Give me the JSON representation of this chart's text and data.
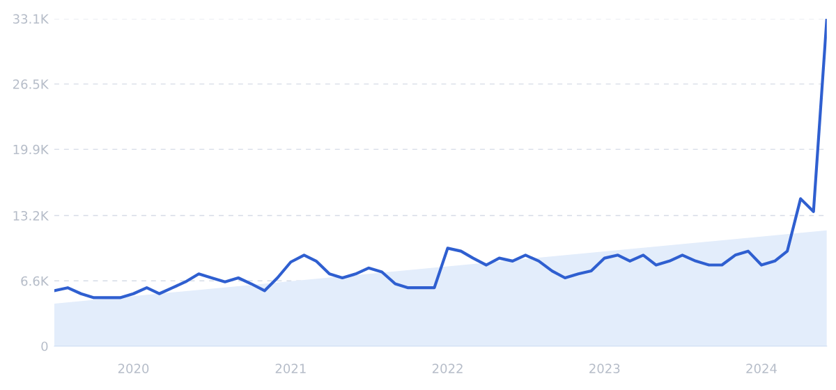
{
  "chart_data": {
    "type": "line",
    "x": [
      "2019-07",
      "2019-08",
      "2019-09",
      "2019-10",
      "2019-11",
      "2019-12",
      "2020-01",
      "2020-02",
      "2020-03",
      "2020-04",
      "2020-05",
      "2020-06",
      "2020-07",
      "2020-08",
      "2020-09",
      "2020-10",
      "2020-11",
      "2020-12",
      "2021-01",
      "2021-02",
      "2021-03",
      "2021-04",
      "2021-05",
      "2021-06",
      "2021-07",
      "2021-08",
      "2021-09",
      "2021-10",
      "2021-11",
      "2021-12",
      "2022-01",
      "2022-02",
      "2022-03",
      "2022-04",
      "2022-05",
      "2022-06",
      "2022-07",
      "2022-08",
      "2022-09",
      "2022-10",
      "2022-11",
      "2022-12",
      "2023-01",
      "2023-02",
      "2023-03",
      "2023-04",
      "2023-05",
      "2023-06",
      "2023-07",
      "2023-08",
      "2023-09",
      "2023-10",
      "2023-11",
      "2023-12",
      "2024-01",
      "2024-02",
      "2024-03",
      "2024-04",
      "2024-05",
      "2024-06"
    ],
    "series": [
      {
        "type": "area",
        "color": "#e3edfb",
        "x": [
          "2019-07",
          "2024-06"
        ],
        "values": [
          4300,
          11700
        ]
      },
      {
        "color": "#2f5fd0",
        "values": [
          5600,
          5900,
          5300,
          4900,
          4900,
          4900,
          5300,
          5900,
          5300,
          5900,
          6500,
          7300,
          6900,
          6500,
          6900,
          6300,
          5600,
          6900,
          8500,
          9200,
          8600,
          7300,
          6900,
          7300,
          7900,
          7500,
          6300,
          5900,
          5900,
          5900,
          9900,
          9600,
          8900,
          8200,
          8900,
          8600,
          9200,
          8600,
          7600,
          6900,
          7300,
          7600,
          8900,
          9200,
          8600,
          9200,
          8200,
          8600,
          9200,
          8600,
          8200,
          8200,
          9200,
          9600,
          8200,
          8600,
          9600,
          14900,
          13600,
          33100
        ]
      }
    ],
    "xlim": [
      "2019-07",
      "2024-06"
    ],
    "xticks": [
      {
        "value": "2020-01",
        "label": "2020"
      },
      {
        "value": "2021-01",
        "label": "2021"
      },
      {
        "value": "2022-01",
        "label": "2022"
      },
      {
        "value": "2023-01",
        "label": "2023"
      },
      {
        "value": "2024-01",
        "label": "2024"
      }
    ],
    "ylim": [
      0,
      33100
    ],
    "yticks": [
      0,
      {
        "value": 6600,
        "label": "6.6K"
      },
      {
        "value": 13200,
        "label": "13.2K"
      },
      {
        "value": 19900,
        "label": "19.9K"
      },
      {
        "value": 26500,
        "label": "26.5K"
      },
      {
        "value": 33100,
        "label": "33.1K"
      }
    ],
    "grid": "y",
    "line_style": "solid",
    "marker": "none",
    "legend": false
  }
}
